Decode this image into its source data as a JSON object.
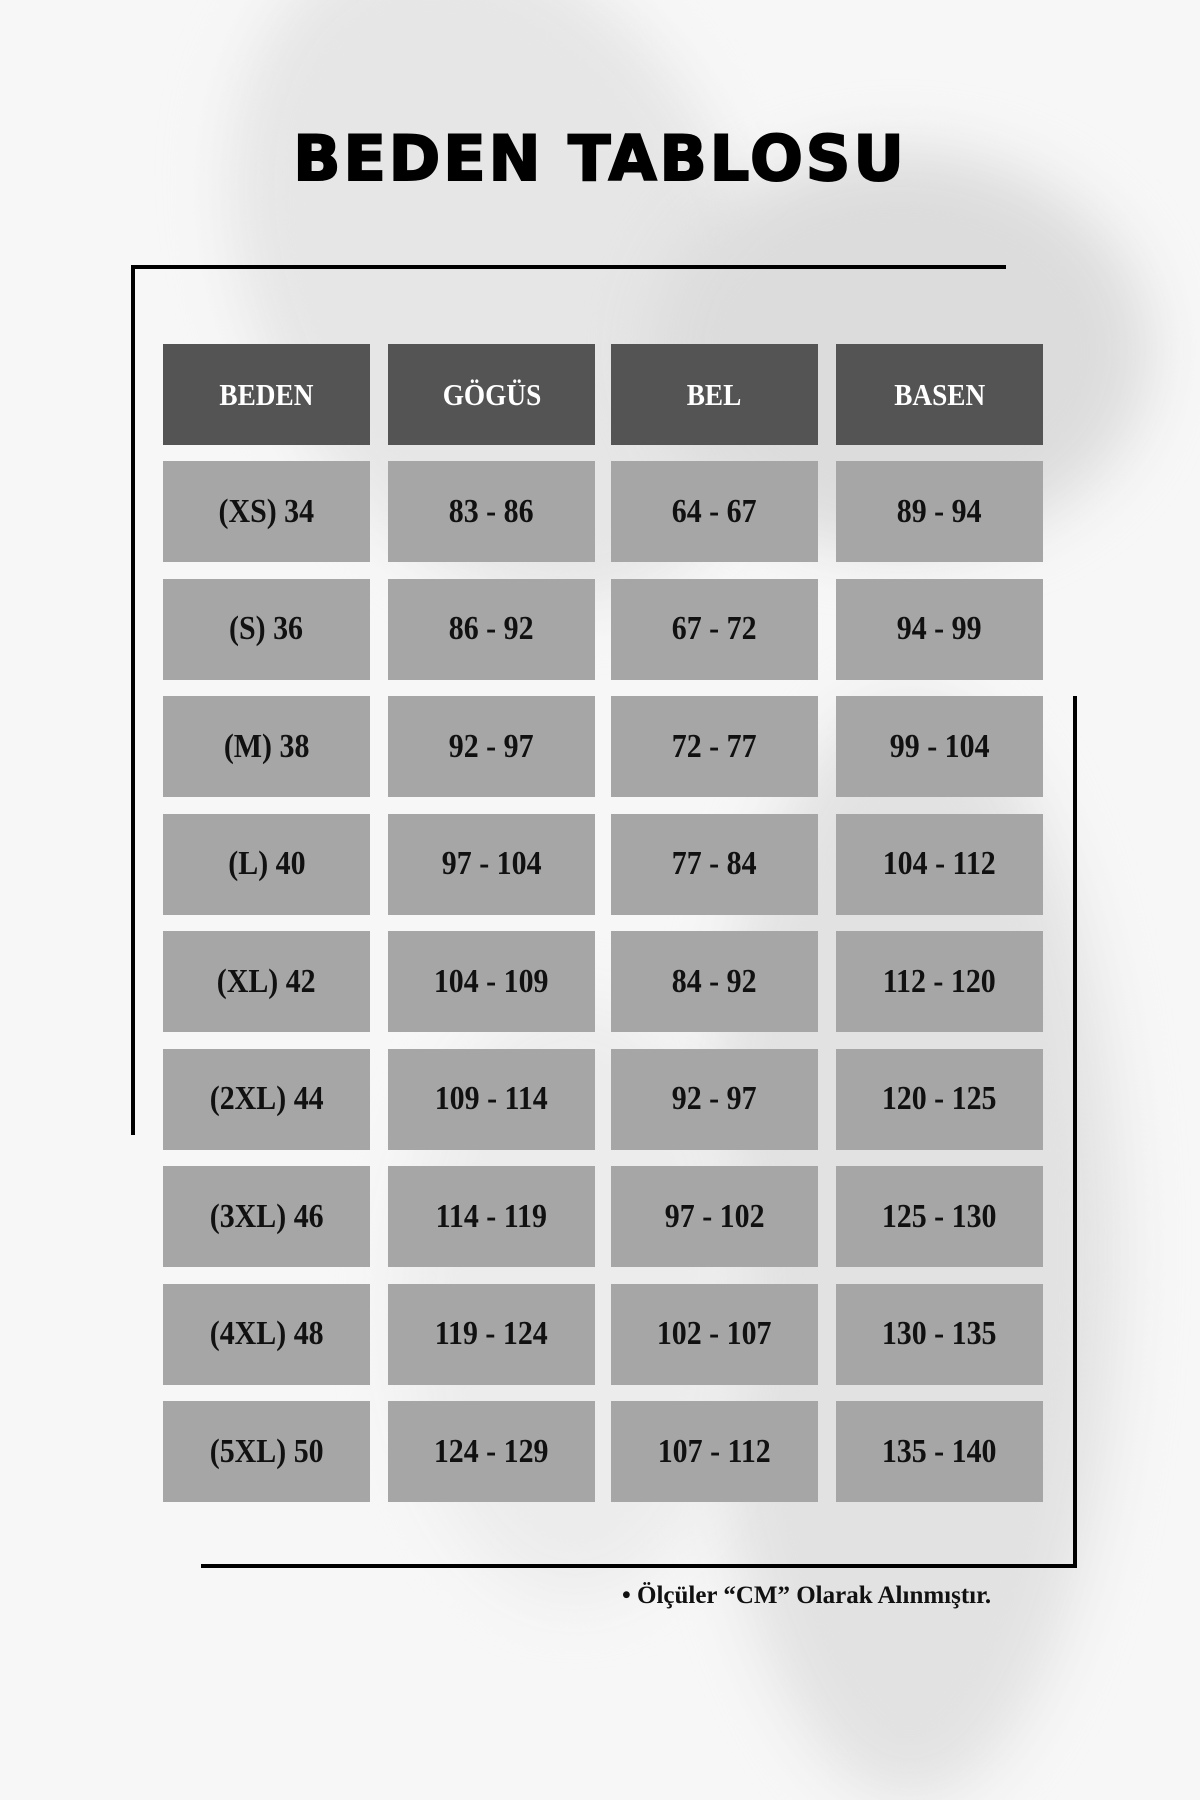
{
  "title": "BEDEN TABLOSU",
  "table": {
    "headers": [
      "BEDEN",
      "GÖGÜS",
      "BEL",
      "BASEN"
    ],
    "rows": [
      [
        "(XS) 34",
        "83 - 86",
        "64 - 67",
        "89 - 94"
      ],
      [
        "(S) 36",
        "86 - 92",
        "67 - 72",
        "94 - 99"
      ],
      [
        "(M) 38",
        "92 - 97",
        "72 - 77",
        "99 - 104"
      ],
      [
        "(L) 40",
        "97 - 104",
        "77 - 84",
        "104 - 112"
      ],
      [
        "(XL) 42",
        "104 - 109",
        "84 - 92",
        "112 - 120"
      ],
      [
        "(2XL) 44",
        "109 - 114",
        "92 - 97",
        "120 - 125"
      ],
      [
        "(3XL) 46",
        "114 - 119",
        "97 - 102",
        "125 - 130"
      ],
      [
        "(4XL) 48",
        "119 - 124",
        "102 - 107",
        "130 - 135"
      ],
      [
        "(5XL) 50",
        "124 - 129",
        "107 - 112",
        "135 - 140"
      ]
    ]
  },
  "note": "• Ölçüler “CM” Olarak Alınmıştır.",
  "colors": {
    "header_bg": "#545454",
    "cell_bg": "#a6a6a6",
    "text": "#111111"
  }
}
